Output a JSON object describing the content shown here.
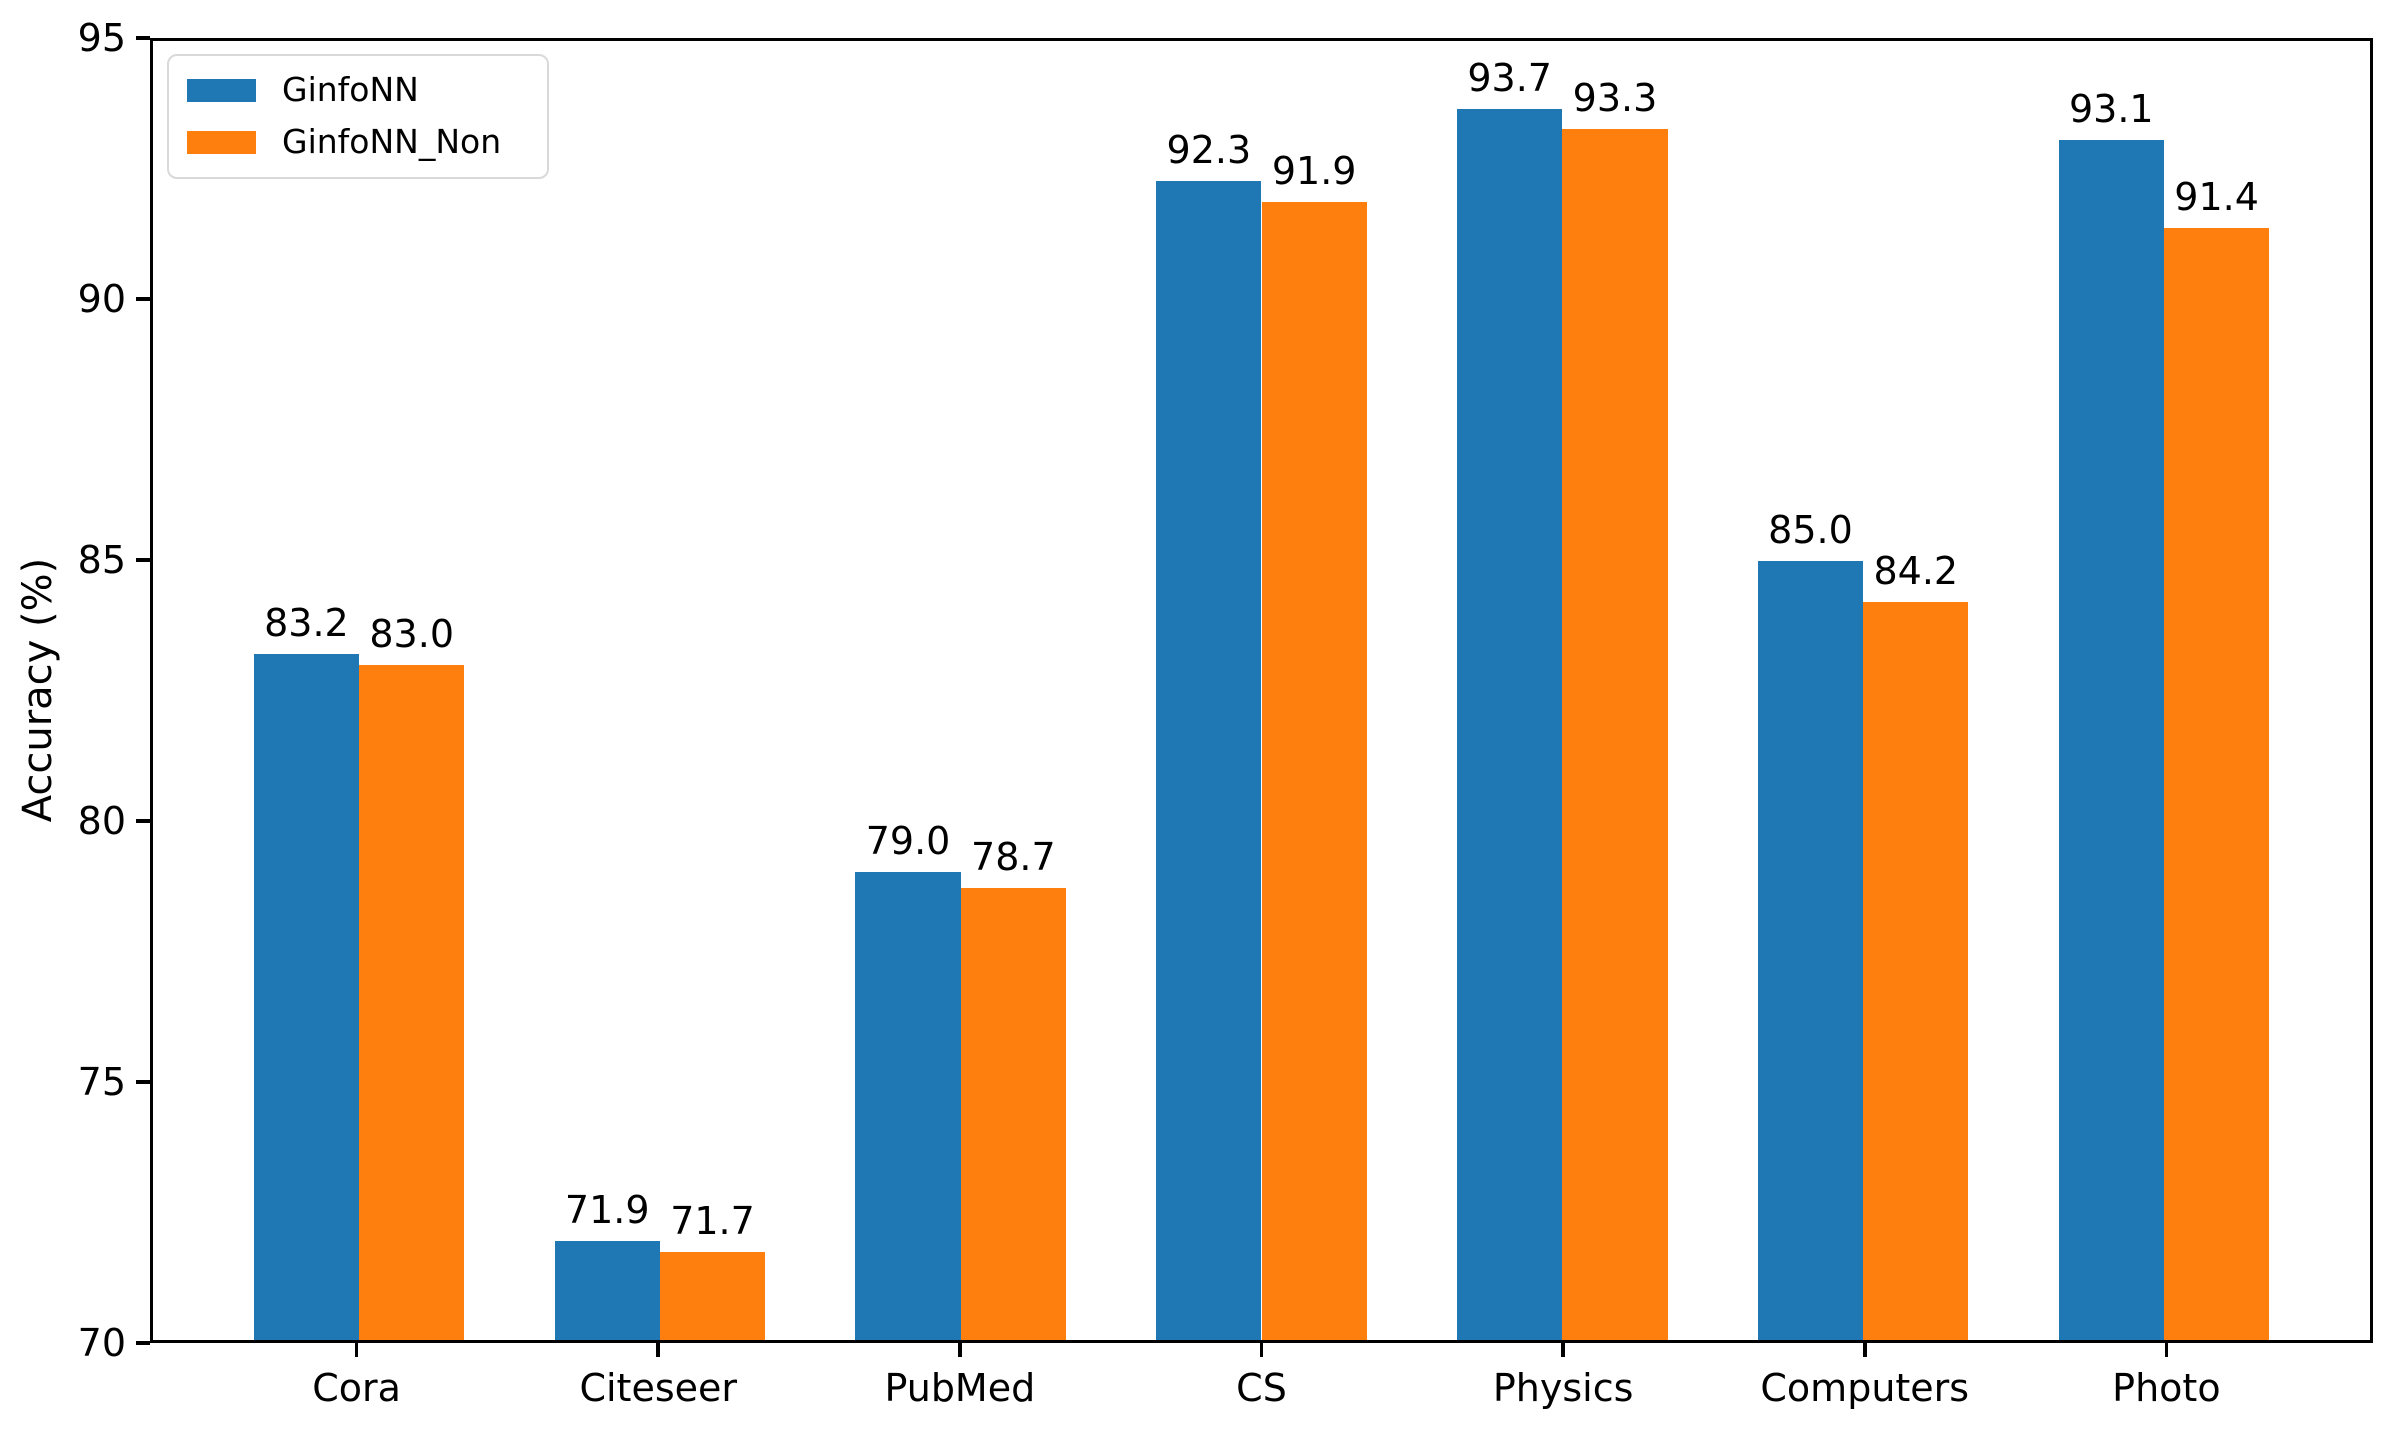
{
  "chart_data": {
    "type": "bar",
    "title": "",
    "xlabel": "",
    "ylabel": "Accuracy (%)",
    "categories": [
      "Cora",
      "Citeseer",
      "PubMed",
      "CS",
      "Physics",
      "Computers",
      "Photo"
    ],
    "series": [
      {
        "name": "GinfoNN",
        "color": "#1f77b4",
        "values": [
          83.2,
          71.9,
          79.0,
          92.3,
          93.7,
          85.0,
          93.1
        ]
      },
      {
        "name": "GinfoNN_Non",
        "color": "#ff7f0e",
        "values": [
          83.0,
          71.7,
          78.7,
          91.9,
          93.3,
          84.2,
          91.4
        ]
      }
    ],
    "ylim": [
      70,
      95
    ],
    "yticks": [
      70,
      75,
      80,
      85,
      90,
      95
    ],
    "bar_value_labels": true,
    "value_label_format": ".1f",
    "grid": false,
    "legend_position": "upper left",
    "frame": "full-box"
  }
}
